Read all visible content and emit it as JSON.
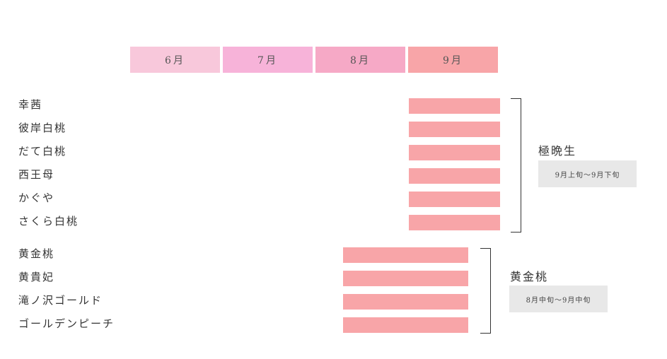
{
  "chart_data": {
    "type": "gantt",
    "months": [
      {
        "label": "6月",
        "color": "#f8c8db"
      },
      {
        "label": "7月",
        "color": "#f7b3d9"
      },
      {
        "label": "8月",
        "color": "#f6a9c6"
      },
      {
        "label": "9月",
        "color": "#f8a5a8"
      }
    ],
    "bar_color": "#f8a5a8",
    "varieties": [
      {
        "name": "幸茜",
        "start": 4.0,
        "end": 5.0
      },
      {
        "name": "彼岸白桃",
        "start": 4.0,
        "end": 5.0
      },
      {
        "name": "だて白桃",
        "start": 4.0,
        "end": 5.0
      },
      {
        "name": "西王母",
        "start": 4.0,
        "end": 5.0
      },
      {
        "name": "かぐや",
        "start": 4.0,
        "end": 5.0
      },
      {
        "name": "さくら白桃",
        "start": 4.0,
        "end": 5.0
      },
      {
        "name": "黄金桃",
        "start": 3.3,
        "end": 4.67
      },
      {
        "name": "黄貴妃",
        "start": 3.3,
        "end": 4.67
      },
      {
        "name": "滝ノ沢ゴールド",
        "start": 3.3,
        "end": 4.67
      },
      {
        "name": "ゴールデンピーチ",
        "start": 3.3,
        "end": 4.67
      }
    ],
    "groups": [
      {
        "title": "極晩生",
        "period": "9月上旬～9月下旬",
        "rows": [
          0,
          5
        ]
      },
      {
        "title": "黄金桃",
        "period": "8月中旬～9月中旬",
        "rows": [
          6,
          9
        ]
      }
    ]
  }
}
